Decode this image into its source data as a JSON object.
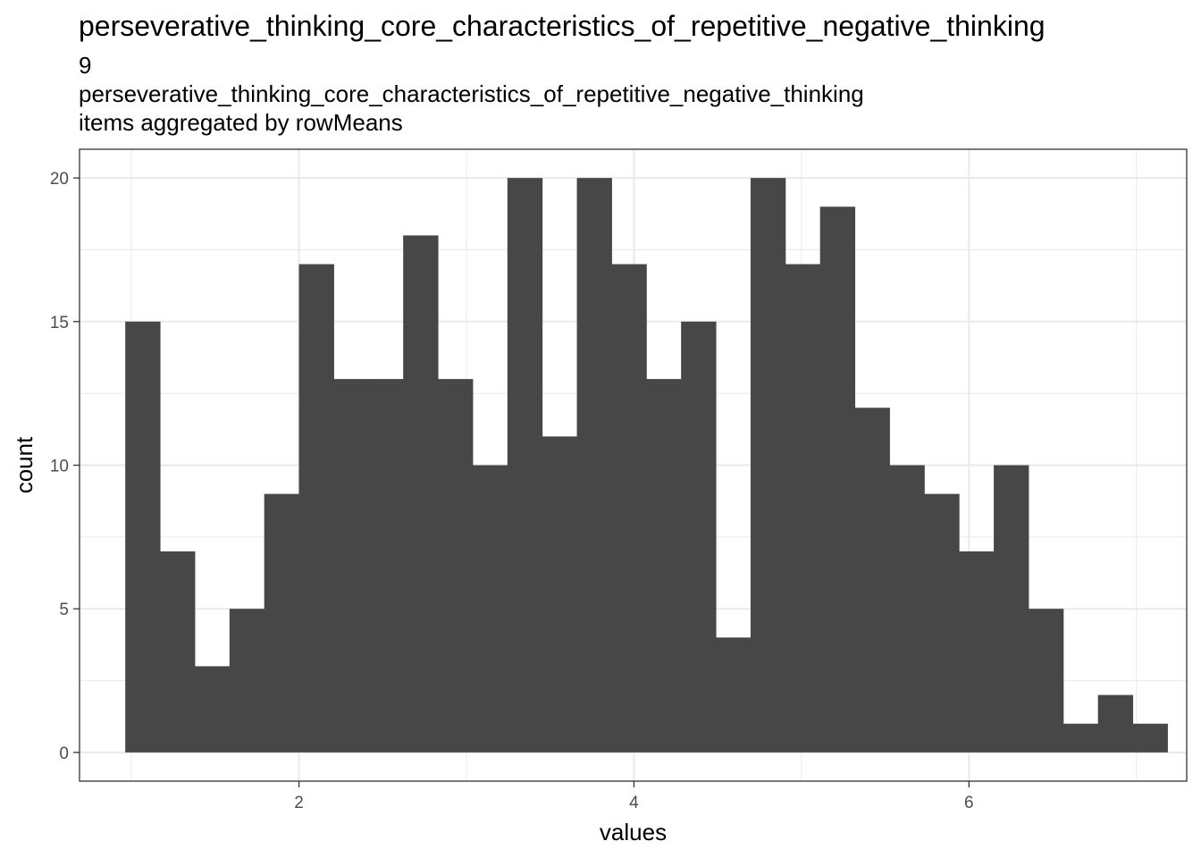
{
  "chart_data": {
    "type": "bar",
    "title": "perseverative_thinking_core_characteristics_of_repetitive_negative_thinking",
    "subtitle_lines": [
      "9",
      "perseverative_thinking_core_characteristics_of_repetitive_negative_thinking",
      "items aggregated by rowMeans"
    ],
    "xlabel": "values",
    "ylabel": "count",
    "xlim": [
      0.69,
      7.3
    ],
    "ylim": [
      -1,
      21
    ],
    "x_ticks": [
      2,
      4,
      6
    ],
    "x_tick_labels": [
      "2",
      "4",
      "6"
    ],
    "y_ticks": [
      0,
      5,
      10,
      15,
      20
    ],
    "y_tick_labels": [
      "0",
      "5",
      "10",
      "15",
      "20"
    ],
    "bin_start": 0.963,
    "bin_width": 0.2074,
    "values": [
      15,
      7,
      3,
      5,
      9,
      17,
      13,
      13,
      18,
      13,
      10,
      20,
      11,
      20,
      17,
      13,
      15,
      4,
      20,
      17,
      19,
      12,
      10,
      9,
      7,
      10,
      5,
      1,
      2,
      1
    ],
    "bar_color": "#474747",
    "grid": true,
    "legend": "none"
  }
}
